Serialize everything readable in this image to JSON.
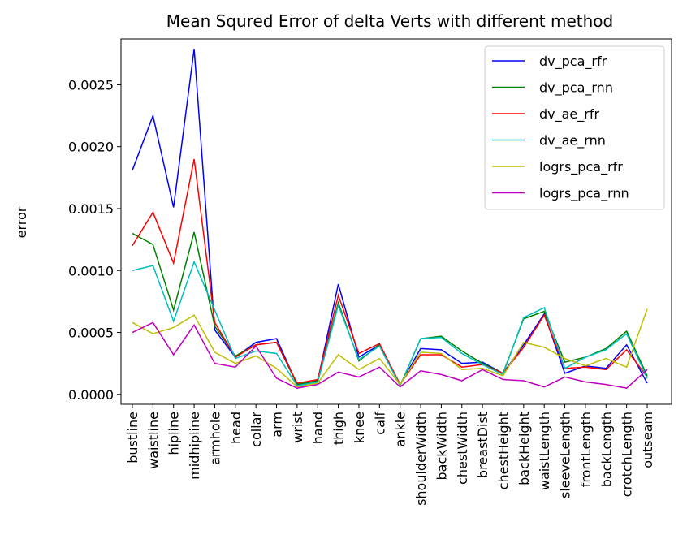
{
  "chart_data": {
    "type": "line",
    "title": "Mean Squred Error of delta Verts with different method",
    "xlabel": "",
    "ylabel": "error",
    "ylim": [
      -8e-05,
      0.00287
    ],
    "yticks": [
      "0.0000",
      "0.0005",
      "0.0010",
      "0.0015",
      "0.0020",
      "0.0025"
    ],
    "ytick_values": [
      0,
      0.0005,
      0.001,
      0.0015,
      0.002,
      0.0025
    ],
    "legend_position": "upper-right",
    "grid": false,
    "categories": [
      "bustline",
      "waistline",
      "hipline",
      "midhipline",
      "armhole",
      "head",
      "collar",
      "arm",
      "wrist",
      "hand",
      "thigh",
      "knee",
      "calf",
      "ankle",
      "shoulderWidth",
      "backWidth",
      "chestWidth",
      "breastDist",
      "chestHeight",
      "backHeight",
      "waistLength",
      "sleeveLength",
      "frontLength",
      "backLength",
      "crotchLength",
      "outseam"
    ],
    "series": [
      {
        "name": "dv_pca_rfr",
        "color": "#0000ff",
        "values": [
          0.00181,
          0.00225,
          0.00151,
          0.00279,
          0.00052,
          0.0003,
          0.00042,
          0.00045,
          8e-05,
          0.00011,
          0.00089,
          0.0003,
          0.0004,
          8e-05,
          0.00037,
          0.00036,
          0.00025,
          0.00026,
          0.00017,
          0.0004,
          0.00065,
          0.00017,
          0.00023,
          0.00021,
          0.0004,
          9e-05
        ]
      },
      {
        "name": "dv_pca_rnn",
        "color": "#008000",
        "values": [
          0.0013,
          0.00121,
          0.00068,
          0.00131,
          0.00055,
          0.00031,
          0.0004,
          0.00042,
          8e-05,
          0.00011,
          0.00074,
          0.00027,
          0.0004,
          7e-05,
          0.00045,
          0.00047,
          0.00035,
          0.00025,
          0.00017,
          0.00061,
          0.00067,
          0.00026,
          0.0003,
          0.00037,
          0.00051,
          0.00015
        ]
      },
      {
        "name": "dv_ae_rfr",
        "color": "#ff0000",
        "values": [
          0.0012,
          0.00147,
          0.00106,
          0.0019,
          0.00058,
          0.0003,
          0.0004,
          0.00042,
          9e-05,
          0.00012,
          0.0008,
          0.00033,
          0.00041,
          8e-05,
          0.00032,
          0.00032,
          0.00022,
          0.00024,
          0.00017,
          0.00038,
          0.00064,
          0.00021,
          0.00022,
          0.0002,
          0.00036,
          0.00014
        ]
      },
      {
        "name": "dv_ae_rnn",
        "color": "#00bfbf",
        "values": [
          0.001,
          0.00104,
          0.00059,
          0.00107,
          0.00068,
          0.00029,
          0.00035,
          0.00033,
          7e-05,
          0.0001,
          0.00072,
          0.00028,
          0.00039,
          7e-05,
          0.00045,
          0.00046,
          0.00033,
          0.00024,
          0.00016,
          0.00062,
          0.0007,
          0.00021,
          0.0003,
          0.00036,
          0.00049,
          0.00013
        ]
      },
      {
        "name": "logrs_pca_rfr",
        "color": "#bfbf00",
        "values": [
          0.00058,
          0.00049,
          0.00054,
          0.00064,
          0.00034,
          0.00025,
          0.00031,
          0.00021,
          6e-05,
          9e-05,
          0.00032,
          0.0002,
          0.00029,
          8e-05,
          0.00034,
          0.00033,
          0.0002,
          0.00021,
          0.00015,
          0.00042,
          0.00038,
          0.00029,
          0.00023,
          0.00029,
          0.00022,
          0.00069
        ]
      },
      {
        "name": "logrs_pca_rnn",
        "color": "#bf00bf",
        "values": [
          0.0005,
          0.00058,
          0.00032,
          0.00056,
          0.00025,
          0.00022,
          0.00039,
          0.00013,
          5e-05,
          8e-05,
          0.00018,
          0.00014,
          0.00022,
          6e-05,
          0.00019,
          0.00016,
          0.00011,
          0.0002,
          0.00012,
          0.00011,
          6e-05,
          0.00014,
          0.0001,
          8e-05,
          5e-05,
          0.0002
        ]
      }
    ]
  }
}
